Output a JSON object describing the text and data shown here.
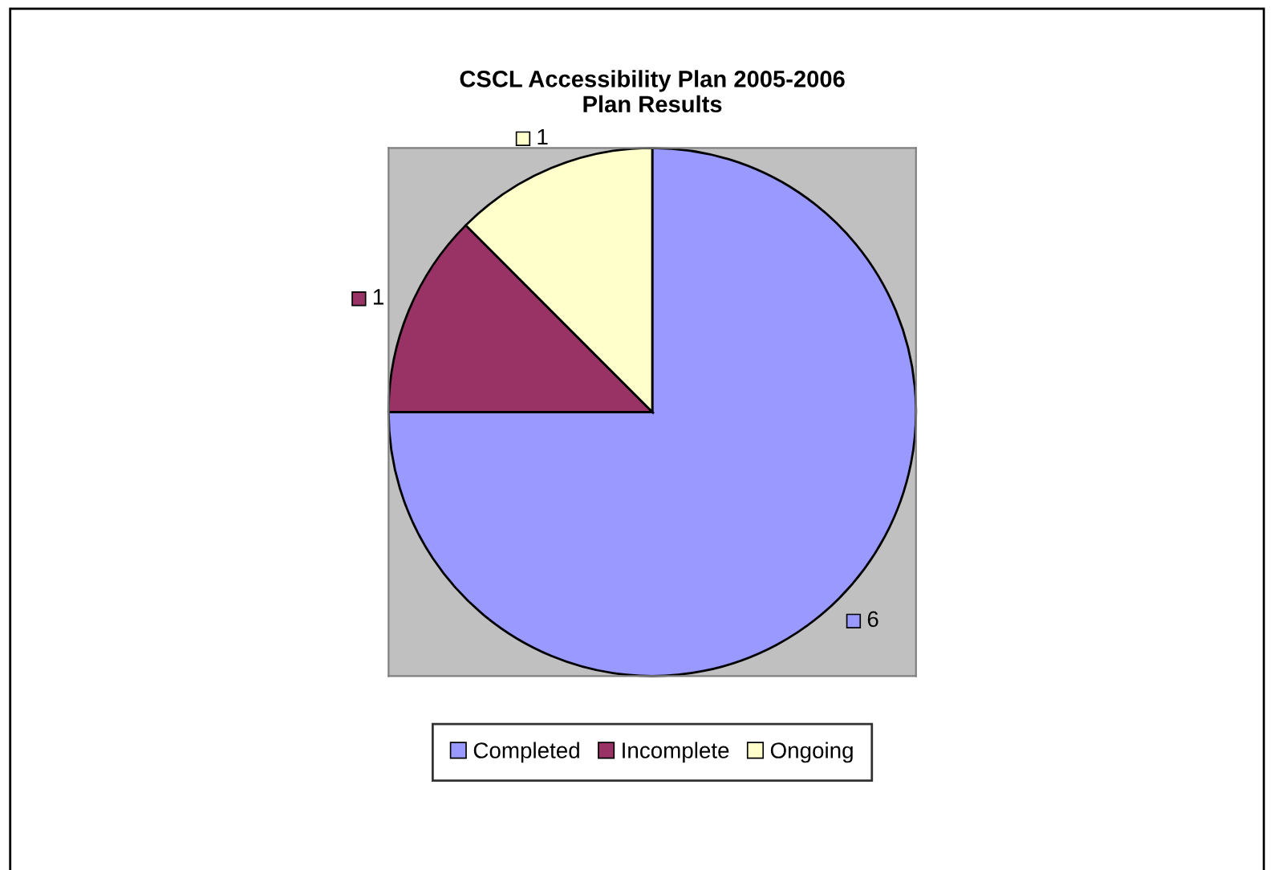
{
  "chart_data": {
    "type": "pie",
    "title": "CSCL Accessibility Plan 2005-2006\nPlan Results",
    "categories": [
      "Completed",
      "Incomplete",
      "Ongoing"
    ],
    "values": [
      6,
      1,
      1
    ],
    "colors": [
      "#9999ff",
      "#993366",
      "#ffffcc"
    ],
    "data_labels": true,
    "legend": "bottom"
  }
}
